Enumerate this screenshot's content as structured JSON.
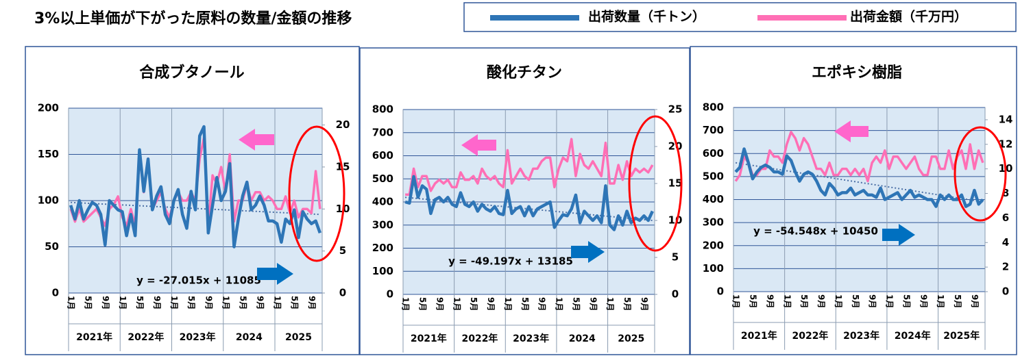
{
  "title": "3%以上単価が下がった原料の数量/金額の推移",
  "chart_data": [
    {
      "type": "line",
      "title": "合成ブタノール",
      "categories": [
        "1月",
        null,
        null,
        null,
        "5月",
        null,
        null,
        null,
        "9月",
        null,
        null,
        null,
        "1月",
        null,
        null,
        null,
        "5月",
        null,
        null,
        null,
        "9月",
        null,
        null,
        null,
        "1月",
        null,
        null,
        null,
        "5月",
        null,
        null,
        null,
        "9月",
        null,
        null,
        null,
        "1月",
        null,
        null,
        null,
        "5月",
        null,
        null,
        null,
        "9月",
        null,
        null,
        null,
        "1月",
        null,
        null,
        null,
        "5月",
        null,
        null,
        null,
        "9月",
        null,
        null
      ],
      "years": [
        "2021年",
        "2022年",
        "2023年",
        "2024",
        "2025"
      ],
      "ylim": [
        0,
        200
      ],
      "yticks": [
        0,
        50,
        100,
        150,
        200
      ],
      "y2lim": [
        0,
        22
      ],
      "y2ticks": [
        0,
        5,
        10,
        15,
        20
      ],
      "series": [
        {
          "name": "出荷数量（千トン）",
          "color": "#2e75b6",
          "values": [
            95,
            80,
            100,
            80,
            90,
            98,
            95,
            85,
            52,
            100,
            95,
            90,
            88,
            62,
            85,
            62,
            155,
            110,
            145,
            90,
            105,
            115,
            85,
            75,
            100,
            112,
            85,
            70,
            110,
            90,
            170,
            180,
            65,
            95,
            125,
            100,
            110,
            140,
            50,
            80,
            105,
            120,
            90,
            95,
            105,
            95,
            78,
            78,
            75,
            55,
            80,
            75,
            90,
            60,
            88,
            80,
            75,
            78,
            65
          ]
        },
        {
          "name": "出荷金額（千万円）",
          "color": "#ff6fb5",
          "axis": "y2",
          "values": [
            10,
            8.5,
            10,
            8.5,
            9,
            9.5,
            10,
            9,
            8,
            10,
            10.5,
            11.5,
            9,
            8,
            10,
            8,
            16.5,
            12,
            16,
            10,
            11,
            12,
            10,
            9,
            11,
            12,
            11,
            11,
            12,
            11,
            16,
            18.5,
            8,
            14,
            13,
            15,
            12,
            16.5,
            8.5,
            11,
            11,
            13,
            11,
            12,
            12,
            11,
            11.5,
            11,
            10,
            10,
            11.5,
            9.5,
            11,
            9,
            10,
            10,
            9.5,
            14.5,
            10
          ]
        }
      ],
      "trend": {
        "label": "y = -27.015x + 11085",
        "values": [
          98,
          85
        ]
      }
    },
    {
      "type": "line",
      "title": "酸化チタン",
      "categories": [
        "1月",
        null,
        null,
        null,
        "5月",
        null,
        null,
        null,
        "9月",
        null,
        null,
        null,
        "1月",
        null,
        null,
        null,
        "5月",
        null,
        null,
        null,
        "9月",
        null,
        null,
        null,
        "1月",
        null,
        null,
        null,
        "5月",
        null,
        null,
        null,
        "9月",
        null,
        null,
        null,
        "1月",
        null,
        null,
        null,
        "5月",
        null,
        null,
        null,
        "9月",
        null,
        null,
        null,
        "1月",
        null,
        null,
        null,
        "5月",
        null,
        null,
        null,
        "9月",
        null,
        null
      ],
      "years": [
        "2021年",
        "2022年",
        "2023年",
        "2024",
        "2025"
      ],
      "ylim": [
        0,
        800
      ],
      "yticks": [
        0,
        100,
        200,
        300,
        400,
        500,
        600,
        700,
        800
      ],
      "y2lim": [
        0,
        25
      ],
      "y2ticks": [
        0,
        5,
        10,
        15,
        20,
        25
      ],
      "series": [
        {
          "name": "出荷数量（千トン）",
          "color": "#2e75b6",
          "values": [
            400,
            395,
            510,
            420,
            470,
            455,
            350,
            410,
            420,
            400,
            420,
            390,
            380,
            440,
            390,
            380,
            400,
            360,
            390,
            370,
            360,
            380,
            350,
            345,
            450,
            350,
            370,
            380,
            340,
            380,
            340,
            370,
            380,
            390,
            400,
            290,
            320,
            345,
            340,
            370,
            430,
            310,
            360,
            340,
            320,
            340,
            310,
            470,
            300,
            280,
            340,
            300,
            360,
            310,
            330,
            320,
            340,
            320,
            360
          ]
        },
        {
          "name": "出荷金額（千万円）",
          "color": "#ff6fb5",
          "axis": "y2",
          "values": [
            13.5,
            13.5,
            17,
            14.5,
            16,
            16,
            14,
            15,
            15.5,
            15,
            15.5,
            14.5,
            14.5,
            16.5,
            15.5,
            15.5,
            16,
            15,
            17,
            16,
            15.5,
            16,
            15,
            14.5,
            19.5,
            15,
            16,
            17,
            16,
            15.5,
            17,
            17,
            18,
            18.5,
            18.5,
            14.5,
            17,
            18.5,
            18,
            21,
            16,
            19,
            17.5,
            17,
            18,
            17,
            16,
            20.5,
            15,
            15,
            17.5,
            15.5,
            18,
            16,
            17,
            16.5,
            17,
            16.5,
            17.5
          ]
        }
      ],
      "trend": {
        "label": "y = -49.197x + 13185",
        "values": [
          420,
          320
        ]
      }
    },
    {
      "type": "line",
      "title": "エポキシ樹脂",
      "categories": [
        "1月",
        null,
        null,
        null,
        "5月",
        null,
        null,
        null,
        "9月",
        null,
        null,
        null,
        "1月",
        null,
        null,
        null,
        "5月",
        null,
        null,
        null,
        "9月",
        null,
        null,
        null,
        "1月",
        null,
        null,
        null,
        "5月",
        null,
        null,
        null,
        "9月",
        null,
        null,
        null,
        "1月",
        null,
        null,
        null,
        "5月",
        null,
        null,
        null,
        "9月",
        null,
        null,
        null,
        "1月",
        null,
        null,
        null,
        "5月",
        null,
        null,
        null,
        "9月",
        null,
        null
      ],
      "years": [
        "2021年",
        "2022年",
        "2023年",
        "2024年",
        "2025年"
      ],
      "ylim": [
        0,
        800
      ],
      "yticks": [
        0,
        100,
        200,
        300,
        400,
        500,
        600,
        700,
        800
      ],
      "y2lim": [
        0,
        15
      ],
      "y2ticks": [
        0,
        2,
        4,
        6,
        8,
        10,
        12,
        14
      ],
      "series": [
        {
          "name": "出荷数量（千トン）",
          "color": "#2e75b6",
          "values": [
            520,
            540,
            620,
            560,
            490,
            520,
            540,
            550,
            540,
            520,
            520,
            510,
            590,
            570,
            520,
            480,
            510,
            520,
            510,
            480,
            440,
            420,
            470,
            450,
            420,
            430,
            430,
            450,
            420,
            430,
            440,
            420,
            420,
            410,
            450,
            400,
            410,
            420,
            430,
            400,
            420,
            440,
            410,
            420,
            410,
            400,
            400,
            370,
            420,
            400,
            420,
            400,
            400,
            420,
            370,
            380,
            440,
            380,
            400
          ]
        },
        {
          "name": "出荷金額（千万円）",
          "color": "#ff6fb5",
          "axis": "y2",
          "values": [
            9,
            9.5,
            11,
            10.5,
            9.5,
            9.5,
            10,
            10,
            11.5,
            11,
            11,
            10.5,
            12,
            13,
            12.5,
            11.5,
            12.5,
            12,
            11,
            10,
            10,
            9.5,
            10.5,
            9.5,
            9.5,
            10,
            10,
            9.5,
            10,
            9.5,
            10,
            9,
            10.5,
            11,
            10.5,
            11.5,
            10,
            11,
            11,
            10.5,
            10,
            10.5,
            11,
            10,
            9.5,
            9.5,
            11,
            11,
            10,
            10,
            11.5,
            10,
            11,
            11.5,
            10,
            12,
            10,
            11.5,
            10.5
          ]
        }
      ],
      "trend": {
        "label": "y = -54.548x + 10450",
        "values": [
          560,
          390
        ]
      }
    }
  ]
}
